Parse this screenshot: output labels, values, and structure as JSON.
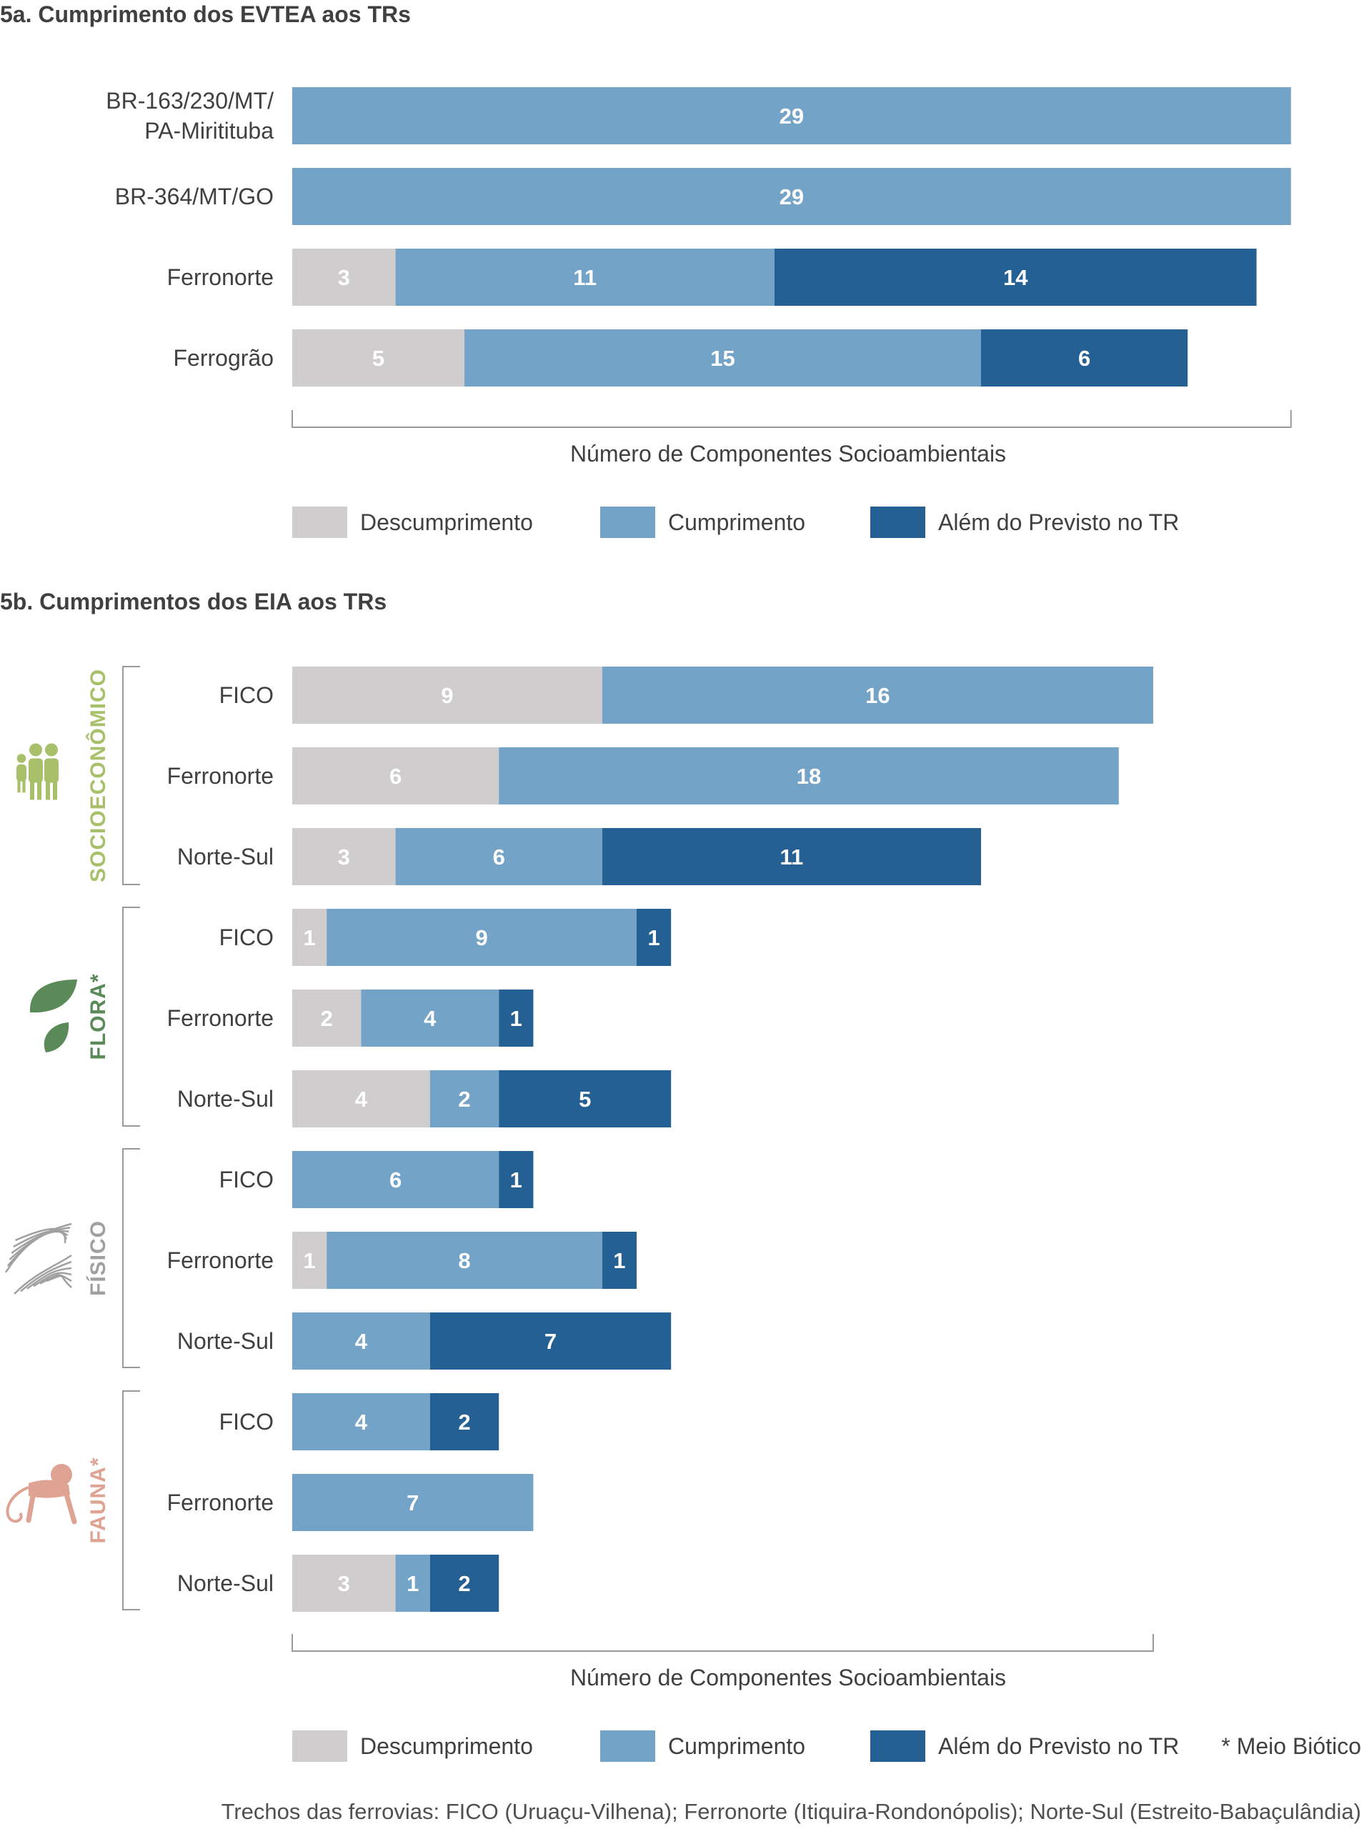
{
  "colors": {
    "descumprimento": "#d0cdce",
    "cumprimento": "#74a3c8",
    "alem": "#246093",
    "text": "#404040",
    "socioeconomico": "#a8c06a",
    "flora": "#5a8a58",
    "fisico": "#a0a0a0",
    "fauna": "#dea393"
  },
  "chart_data": [
    {
      "id": "5a",
      "type": "bar",
      "orientation": "horizontal",
      "stacked": true,
      "title": "5a. Cumprimento dos EVTEA aos TRs",
      "xlabel": "Número de Componentes Socioambientais",
      "categories": [
        [
          "BR-163/230/MT/",
          "PA-Miritituba"
        ],
        [
          "BR-364/MT/GO"
        ],
        [
          "Ferronorte"
        ],
        [
          "Ferrogrão"
        ]
      ],
      "series": [
        {
          "name": "Descumprimento",
          "color": "#d0cdce",
          "values": [
            0,
            0,
            3,
            5
          ]
        },
        {
          "name": "Cumprimento",
          "color": "#74a3c8",
          "values": [
            29,
            29,
            11,
            15
          ]
        },
        {
          "name": "Além do Previsto no TR",
          "color": "#246093",
          "values": [
            0,
            0,
            14,
            6
          ]
        }
      ],
      "xlim": [
        0,
        29
      ],
      "grid": false,
      "legend": "bottom",
      "legend_entries": [
        "Descumprimento",
        "Cumprimento",
        "Além do Previsto no TR"
      ]
    },
    {
      "id": "5b",
      "type": "bar",
      "orientation": "horizontal",
      "stacked": true,
      "title": "5b. Cumprimentos dos EIA aos TRs",
      "xlabel": "Número de Componentes Socioambientais",
      "groups": [
        {
          "label": "SOCIOECONÔMICO",
          "color": "#a8c06a",
          "icon": "people-icon"
        },
        {
          "label": "FLORA*",
          "color": "#5a8a58",
          "icon": "leaf-icon"
        },
        {
          "label": "FÍSICO",
          "color": "#a0a0a0",
          "icon": "terrain-lines-icon"
        },
        {
          "label": "FAUNA*",
          "color": "#dea393",
          "icon": "monkey-icon"
        }
      ],
      "categories": [
        [
          "FICO"
        ],
        [
          "Ferronorte"
        ],
        [
          "Norte-Sul"
        ],
        [
          "FICO"
        ],
        [
          "Ferronorte"
        ],
        [
          "Norte-Sul"
        ],
        [
          "FICO"
        ],
        [
          "Ferronorte"
        ],
        [
          "Norte-Sul"
        ],
        [
          "FICO"
        ],
        [
          "Ferronorte"
        ],
        [
          "Norte-Sul"
        ]
      ],
      "series": [
        {
          "name": "Descumprimento",
          "color": "#d0cdce",
          "values": [
            9,
            6,
            3,
            1,
            2,
            4,
            0,
            1,
            0,
            0,
            0,
            3
          ]
        },
        {
          "name": "Cumprimento",
          "color": "#74a3c8",
          "values": [
            16,
            18,
            6,
            9,
            4,
            2,
            6,
            8,
            4,
            4,
            7,
            1
          ]
        },
        {
          "name": "Além do Previsto no TR",
          "color": "#246093",
          "values": [
            0,
            0,
            11,
            1,
            1,
            5,
            1,
            1,
            7,
            2,
            0,
            2
          ]
        }
      ],
      "xlim": [
        0,
        25
      ],
      "grid": false,
      "legend": "bottom",
      "legend_entries": [
        "Descumprimento",
        "Cumprimento",
        "Além do Previsto no TR"
      ],
      "legend_note": "* Meio Biótico",
      "footnote": "Trechos das ferrovias: FICO (Uruaçu-Vilhena); Ferronorte (Itiquira-Rondonópolis); Norte-Sul (Estreito-Babaçulândia)"
    }
  ]
}
